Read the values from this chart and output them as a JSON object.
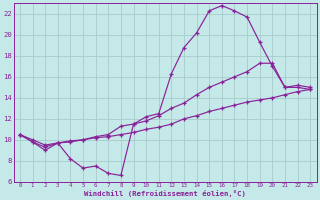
{
  "xlabel": "Windchill (Refroidissement éolien,°C)",
  "xlim": [
    -0.5,
    23.5
  ],
  "ylim": [
    6,
    23
  ],
  "xticks": [
    0,
    1,
    2,
    3,
    4,
    5,
    6,
    7,
    8,
    9,
    10,
    11,
    12,
    13,
    14,
    15,
    16,
    17,
    18,
    19,
    20,
    21,
    22,
    23
  ],
  "yticks": [
    6,
    8,
    10,
    12,
    14,
    16,
    18,
    20,
    22
  ],
  "bg_color": "#c5e8e8",
  "line_color": "#882299",
  "grid_color": "#a8cccc",
  "curve1_x": [
    0,
    1,
    2,
    3,
    4,
    5,
    6,
    7,
    8,
    9,
    10,
    11,
    12,
    13,
    14,
    15,
    16,
    17,
    18,
    19,
    20,
    21,
    22,
    23
  ],
  "curve1_y": [
    10.5,
    9.8,
    9.0,
    9.7,
    8.2,
    7.3,
    7.5,
    6.8,
    6.6,
    11.5,
    12.2,
    12.5,
    16.3,
    18.8,
    20.2,
    22.3,
    22.8,
    22.3,
    21.7,
    19.3,
    17.0,
    15.0,
    15.0,
    14.8
  ],
  "curve2_x": [
    0,
    1,
    2,
    3,
    4,
    5,
    6,
    7,
    8,
    9,
    10,
    11,
    12,
    13,
    14,
    15,
    16,
    17,
    18,
    19,
    20,
    21,
    22,
    23
  ],
  "curve2_y": [
    10.5,
    9.8,
    9.3,
    9.7,
    9.8,
    10.0,
    10.3,
    10.5,
    11.3,
    11.5,
    11.8,
    12.3,
    13.0,
    13.5,
    14.3,
    15.0,
    15.5,
    16.0,
    16.5,
    17.3,
    17.3,
    15.0,
    15.2,
    15.0
  ],
  "curve3_x": [
    0,
    1,
    2,
    3,
    4,
    5,
    6,
    7,
    8,
    9,
    10,
    11,
    12,
    13,
    14,
    15,
    16,
    17,
    18,
    19,
    20,
    21,
    22,
    23
  ],
  "curve3_y": [
    10.5,
    10.0,
    9.5,
    9.7,
    9.9,
    10.0,
    10.2,
    10.3,
    10.5,
    10.7,
    11.0,
    11.2,
    11.5,
    12.0,
    12.3,
    12.7,
    13.0,
    13.3,
    13.6,
    13.8,
    14.0,
    14.3,
    14.6,
    14.8
  ]
}
